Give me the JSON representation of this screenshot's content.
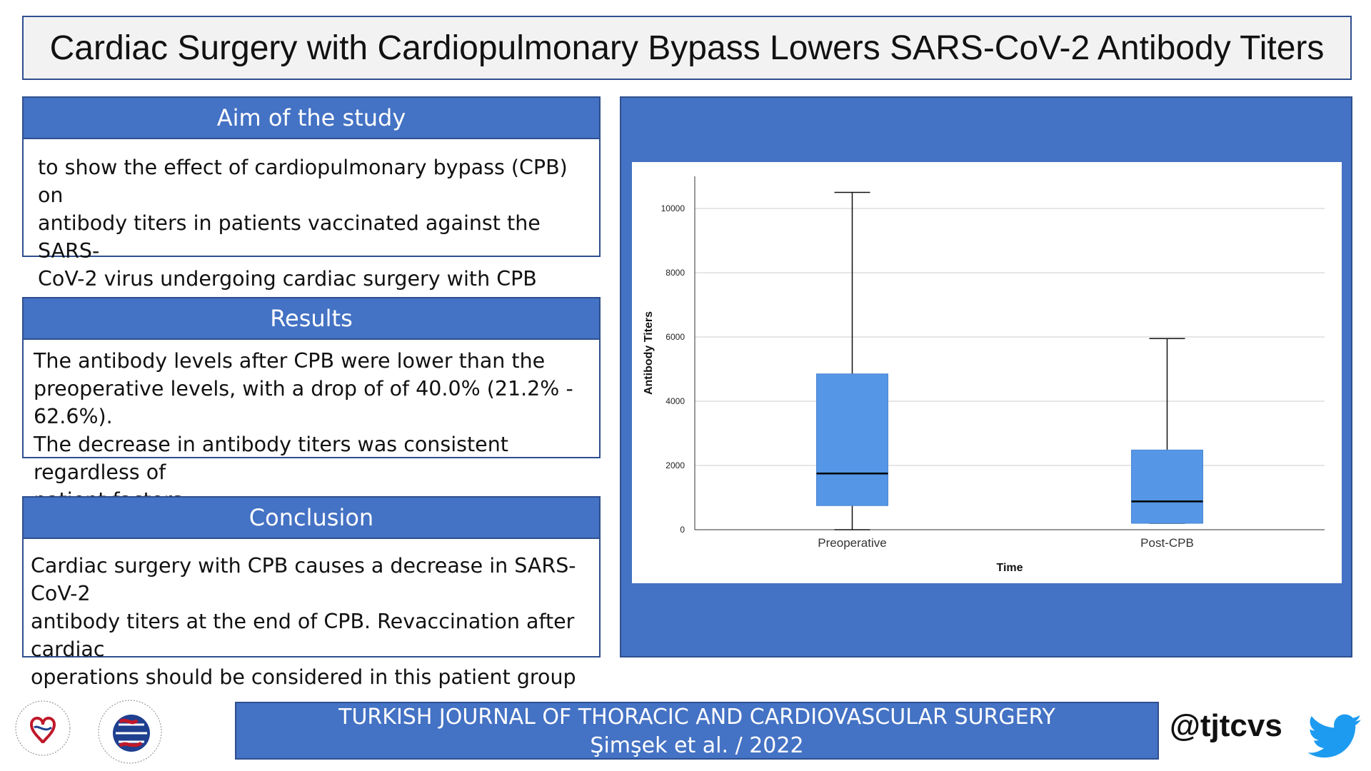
{
  "title": "Cardiac Surgery with Cardiopulmonary Bypass Lowers SARS-CoV-2 Antibody Titers",
  "aim": {
    "heading": "Aim of the study",
    "lines": [
      "to show the effect of cardiopulmonary bypass (CPB) on",
      "antibody titers in patients vaccinated against the SARS-",
      "CoV-2 virus undergoing cardiac surgery with CPB"
    ]
  },
  "results": {
    "heading": "Results",
    "lines": [
      "The antibody levels after CPB were lower than the",
      "preoperative levels, with a drop of of 40.0% (21.2% - 62.6%).",
      "The decrease in antibody titers was consistent regardless of",
      "patient factors"
    ]
  },
  "conclusion": {
    "heading": "Conclusion",
    "lines": [
      "Cardiac surgery with CPB causes a decrease in SARS-CoV-2",
      "antibody titers at the end of CPB. Revaccination after cardiac",
      "operations should be considered in this patient group"
    ]
  },
  "footer": {
    "journal": "TURKISH JOURNAL OF THORACIC AND CARDIOVASCULAR SURGERY",
    "citation": "Şimşek et al. / 2022",
    "handle": "@tjtcvs"
  },
  "colors": {
    "accent": "#4472c4",
    "box_fill": "#5596e6",
    "twitter": "#1d9bf0"
  },
  "icons": [
    "twitter-icon",
    "society-cardiovascular-logo",
    "society-thoracic-logo"
  ],
  "chart_data": {
    "type": "box",
    "xlabel": "Time",
    "ylabel": "Antibody Titers",
    "ylim": [
      0,
      11000
    ],
    "yticks": [
      0,
      2000,
      4000,
      6000,
      8000,
      10000
    ],
    "grid": true,
    "categories": [
      "Preoperative",
      "Post-CPB"
    ],
    "boxes": [
      {
        "category": "Preoperative",
        "min": 0,
        "q1": 750,
        "median": 1750,
        "q3": 4850,
        "max": 10500
      },
      {
        "category": "Post-CPB",
        "min": 200,
        "q1": 200,
        "median": 880,
        "q3": 2480,
        "max": 5950
      }
    ]
  }
}
